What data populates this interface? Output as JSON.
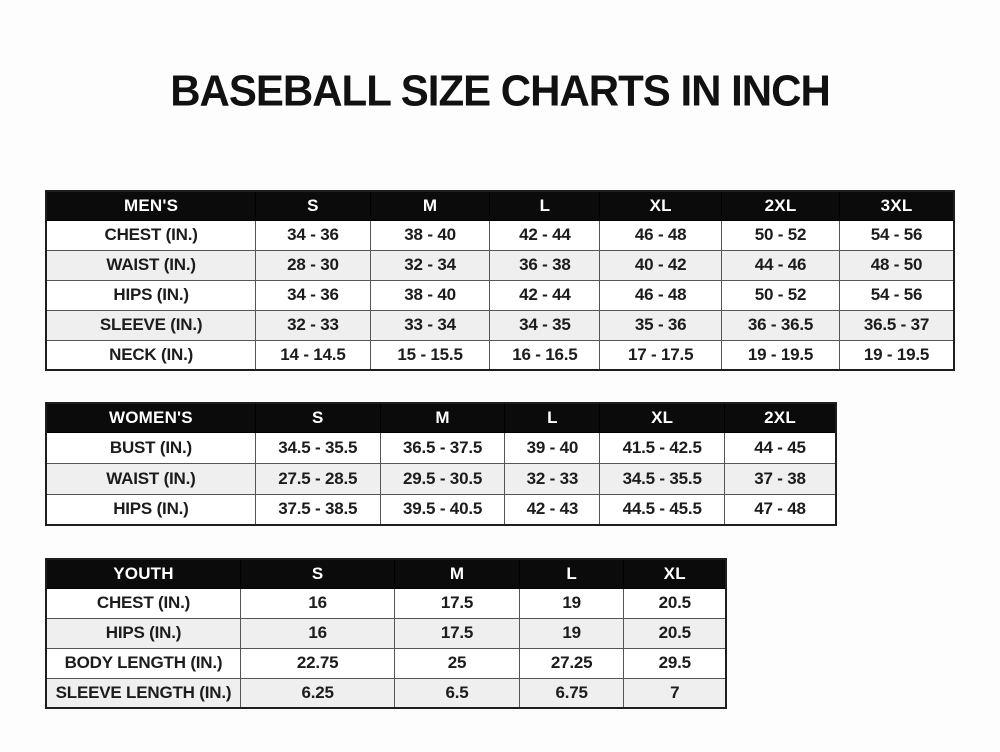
{
  "page": {
    "title": "BASEBALL SIZE CHARTS IN INCH"
  },
  "colors": {
    "header_bg": "#0b0b0b",
    "header_text": "#ffffff",
    "row_alt": "#efefef",
    "row_bg": "#ffffff",
    "border": "#555555",
    "outer_border": "#1e1e1e",
    "text": "#1c1c1c",
    "page_bg": "#fdfdfd",
    "bottom_strip": "#e9e9e9"
  },
  "tables": [
    {
      "name": "mens",
      "header": [
        "MEN'S",
        "S",
        "M",
        "L",
        "XL",
        "2XL",
        "3XL"
      ],
      "rows": [
        {
          "label": "CHEST (IN.)",
          "values": [
            "34 - 36",
            "38 - 40",
            "42 - 44",
            "46 - 48",
            "50 - 52",
            "54 - 56"
          ]
        },
        {
          "label": "WAIST (IN.)",
          "values": [
            "28 - 30",
            "32 - 34",
            "36 - 38",
            "40 - 42",
            "44 - 46",
            "48 - 50"
          ]
        },
        {
          "label": "HIPS (IN.)",
          "values": [
            "34 - 36",
            "38 - 40",
            "42 - 44",
            "46 - 48",
            "50 - 52",
            "54 - 56"
          ]
        },
        {
          "label": "SLEEVE (IN.)",
          "values": [
            "32 - 33",
            "33 - 34",
            "34 - 35",
            "35 - 36",
            "36 - 36.5",
            "36.5 - 37"
          ]
        },
        {
          "label": "NECK (IN.)",
          "values": [
            "14 - 14.5",
            "15 - 15.5",
            "16 - 16.5",
            "17 - 17.5",
            "19 - 19.5",
            "19 - 19.5"
          ]
        }
      ]
    },
    {
      "name": "womens",
      "header": [
        "WOMEN'S",
        "S",
        "M",
        "L",
        "XL",
        "2XL"
      ],
      "rows": [
        {
          "label": "BUST (IN.)",
          "values": [
            "34.5 - 35.5",
            "36.5 - 37.5",
            "39 - 40",
            "41.5 - 42.5",
            "44 - 45"
          ]
        },
        {
          "label": "WAIST (IN.)",
          "values": [
            "27.5 - 28.5",
            "29.5 - 30.5",
            "32 - 33",
            "34.5 - 35.5",
            "37 - 38"
          ]
        },
        {
          "label": "HIPS (IN.)",
          "values": [
            "37.5 - 38.5",
            "39.5 - 40.5",
            "42 - 43",
            "44.5 - 45.5",
            "47 - 48"
          ]
        }
      ]
    },
    {
      "name": "youth",
      "header": [
        "YOUTH",
        "S",
        "M",
        "L",
        "XL"
      ],
      "rows": [
        {
          "label": "CHEST (IN.)",
          "values": [
            "16",
            "17.5",
            "19",
            "20.5"
          ]
        },
        {
          "label": "HIPS (IN.)",
          "values": [
            "16",
            "17.5",
            "19",
            "20.5"
          ]
        },
        {
          "label": "BODY LENGTH (IN.)",
          "values": [
            "22.75",
            "25",
            "27.25",
            "29.5"
          ]
        },
        {
          "label": "SLEEVE LENGTH (IN.)",
          "values": [
            "6.25",
            "6.5",
            "6.75",
            "7"
          ]
        }
      ]
    }
  ]
}
